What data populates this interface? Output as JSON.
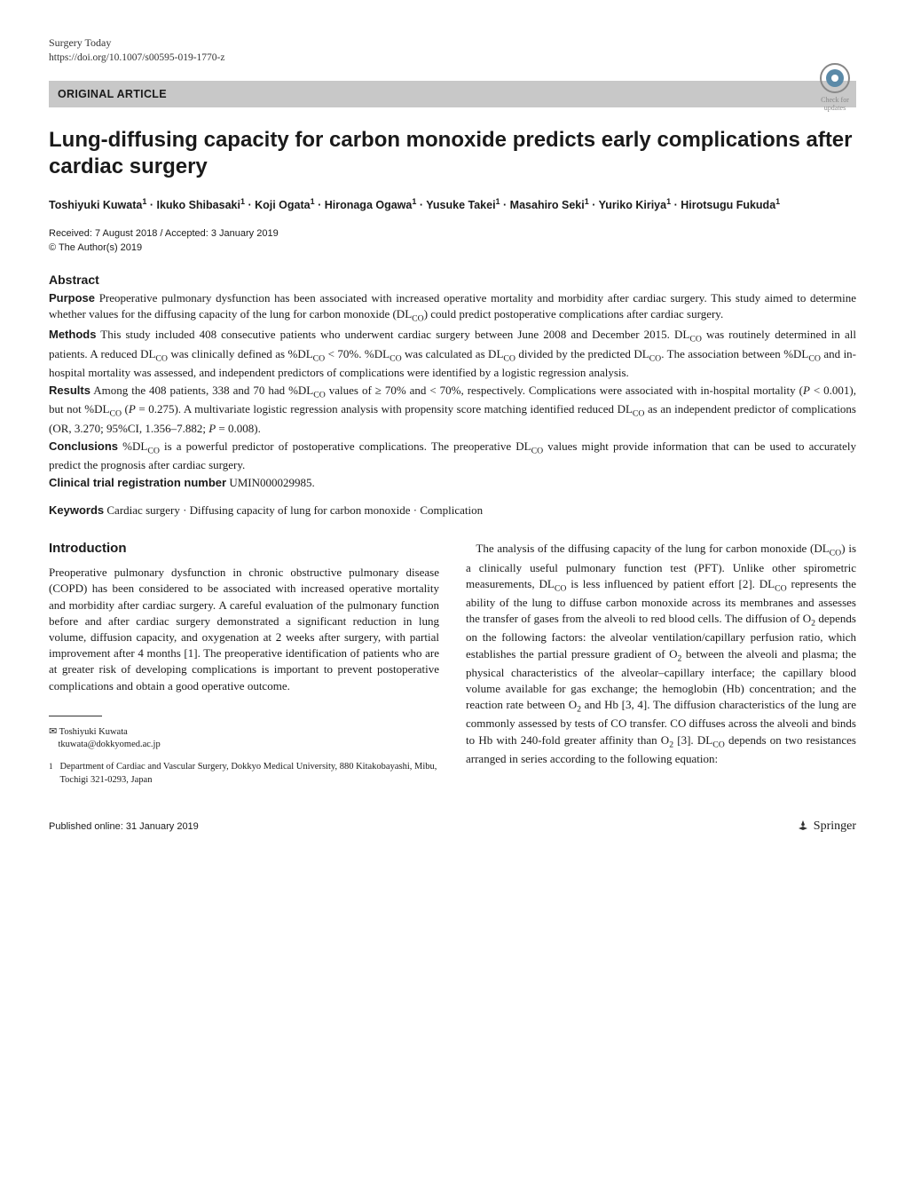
{
  "journal": {
    "name": "Surgery Today",
    "doi": "https://doi.org/10.1007/s00595-019-1770-z"
  },
  "article_type": "ORIGINAL ARTICLE",
  "crossmark_label": "Check for updates",
  "title": "Lung-diffusing capacity for carbon monoxide predicts early complications after cardiac surgery",
  "authors_html": "Toshiyuki Kuwata<sup>1</sup> · Ikuko Shibasaki<sup>1</sup> · Koji Ogata<sup>1</sup> · Hironaga Ogawa<sup>1</sup> · Yusuke Takei<sup>1</sup> · Masahiro Seki<sup>1</sup> · Yuriko Kiriya<sup>1</sup> · Hirotsugu Fukuda<sup>1</sup>",
  "dates": {
    "received_accepted": "Received: 7 August 2018 / Accepted: 3 January 2019",
    "copyright": "© The Author(s) 2019"
  },
  "abstract": {
    "heading": "Abstract",
    "purpose_label": "Purpose",
    "purpose_text": "Preoperative pulmonary dysfunction has been associated with increased operative mortality and morbidity after cardiac surgery. This study aimed to determine whether values for the diffusing capacity of the lung for carbon monoxide (DL",
    "purpose_text2": ") could predict postoperative complications after cardiac surgery.",
    "methods_label": "Methods",
    "methods_text": "This study included 408 consecutive patients who underwent cardiac surgery between June 2008 and December 2015. DL",
    "methods_text2": " was routinely determined in all patients. A reduced DL",
    "methods_text3": " was clinically defined as %DL",
    "methods_text4": " < 70%. %DL",
    "methods_text5": " was calculated as DL",
    "methods_text6": " divided by the predicted DL",
    "methods_text7": ". The association between %DL",
    "methods_text8": " and in-hospital mortality was assessed, and independent predictors of complications were identified by a logistic regression analysis.",
    "results_label": "Results",
    "results_text": "Among the 408 patients, 338 and 70 had %DL",
    "results_text2": " values of ≥ 70% and < 70%, respectively. Complications were associated with in-hospital mortality (",
    "results_text3": "P",
    "results_text4": " < 0.001), but not %DL",
    "results_text5": " (",
    "results_text6": "P",
    "results_text7": " = 0.275). A multivariate logistic regression analysis with propensity score matching identified reduced DL",
    "results_text8": " as an independent predictor of complications (OR, 3.270; 95%CI, 1.356–7.882; ",
    "results_text9": "P",
    "results_text10": " = 0.008).",
    "conclusions_label": "Conclusions",
    "conclusions_text": "%DL",
    "conclusions_text2": " is a powerful predictor of postoperative complications. The preoperative DL",
    "conclusions_text3": " values might provide information that can be used to accurately predict the prognosis after cardiac surgery.",
    "trial_label": "Clinical trial registration number",
    "trial_text": "UMIN000029985."
  },
  "keywords": {
    "label": "Keywords",
    "text": "Cardiac surgery · Diffusing capacity of lung for carbon monoxide · Complication"
  },
  "introduction": {
    "heading": "Introduction",
    "para1": "Preoperative pulmonary dysfunction in chronic obstructive pulmonary disease (COPD) has been considered to be associated with increased operative mortality and morbidity after cardiac surgery. A careful evaluation of the pulmonary function before and after cardiac surgery demonstrated a significant reduction in lung volume, diffusion capacity, and oxygenation at 2 weeks after surgery, with partial improvement after 4 months [1]. The preoperative identification of patients who are at greater risk of developing complications is important to prevent postoperative complications and obtain a good operative outcome.",
    "para2a": "The analysis of the diffusing capacity of the lung for carbon monoxide (DL",
    "para2b": ") is a clinically useful pulmonary function test (PFT). Unlike other spirometric measurements, DL",
    "para2c": " is less influenced by patient effort [2]. DL",
    "para2d": " represents the ability of the lung to diffuse carbon monoxide across its membranes and assesses the transfer of gases from the alveoli to red blood cells. The diffusion of O",
    "para2e": " depends on the following factors: the alveolar ventilation/capillary perfusion ratio, which establishes the partial pressure gradient of O",
    "para2f": " between the alveoli and plasma; the physical characteristics of the alveolar–capillary interface; the capillary blood volume available for gas exchange; the hemoglobin (Hb) concentration; and the reaction rate between O",
    "para2g": " and Hb [3, 4]. The diffusion characteristics of the lung are commonly assessed by tests of CO transfer. CO diffuses across the alveoli and binds to Hb with 240-fold greater affinity than O",
    "para2h": " [3]. DL",
    "para2i": " depends on two resistances arranged in series according to the following equation:"
  },
  "footnotes": {
    "corresponding_name": "Toshiyuki Kuwata",
    "corresponding_email": "tkuwata@dokkyomed.ac.jp",
    "affil_num": "1",
    "affil_text": "Department of Cardiac and Vascular Surgery, Dokkyo Medical University, 880 Kitakobayashi, Mibu, Tochigi 321-0293, Japan"
  },
  "footer": {
    "published": "Published online: 31 January 2019",
    "publisher": "Springer"
  },
  "subscripts": {
    "co": "CO",
    "two": "2"
  }
}
